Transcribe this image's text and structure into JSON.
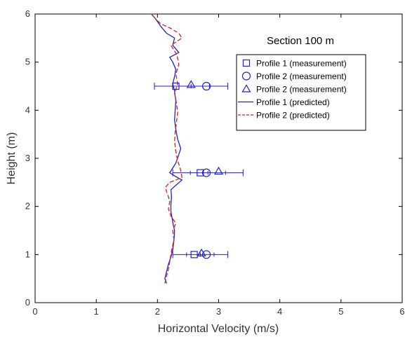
{
  "chart_data": {
    "type": "line",
    "title": "",
    "annotation": "Section 100 m",
    "xlabel": "Horizontal Velocity (m/s)",
    "ylabel": "Height (m)",
    "xlim": [
      0,
      6
    ],
    "ylim": [
      0,
      6
    ],
    "xticks": [
      0,
      1,
      2,
      3,
      4,
      5,
      6
    ],
    "yticks": [
      0,
      1,
      2,
      3,
      4,
      5,
      6
    ],
    "grid": false,
    "legend_position": "top-right",
    "colors": {
      "profile1": "#1f1fd6",
      "profile2": "#e41a1c",
      "axes": "#000000"
    },
    "series": [
      {
        "name": "Profile 1 (predicted)",
        "kind": "line",
        "style": "solid",
        "color": "#1f1fd6",
        "x": [
          2.15,
          2.12,
          2.15,
          2.18,
          2.22,
          2.25,
          2.27,
          2.28,
          2.26,
          2.24,
          2.22,
          2.22,
          2.23,
          2.22,
          2.4,
          2.3,
          2.2,
          2.3,
          2.38,
          2.33,
          2.3,
          2.28,
          2.29,
          2.3,
          2.28,
          2.25,
          2.28,
          2.3,
          2.25,
          2.2,
          2.35,
          2.25,
          2.28,
          2.15,
          2.05,
          1.97,
          1.9
        ],
        "y": [
          0.4,
          0.5,
          0.65,
          0.8,
          0.95,
          1.1,
          1.3,
          1.5,
          1.6,
          1.75,
          1.9,
          2.05,
          2.2,
          2.35,
          2.55,
          2.62,
          2.7,
          2.9,
          3.2,
          3.4,
          3.6,
          3.8,
          4.0,
          4.2,
          4.4,
          4.55,
          4.7,
          4.85,
          5.0,
          5.1,
          5.2,
          5.35,
          5.5,
          5.6,
          5.75,
          5.9,
          6.0
        ]
      },
      {
        "name": "Profile 2 (predicted)",
        "kind": "line",
        "style": "dashed",
        "color": "#e41a1c",
        "x": [
          2.12,
          2.15,
          2.18,
          2.2,
          2.22,
          2.24,
          2.27,
          2.25,
          2.3,
          2.22,
          2.18,
          2.2,
          2.18,
          2.15,
          2.13,
          2.2,
          2.4,
          2.38,
          2.33,
          2.3,
          2.28,
          2.29,
          2.31,
          2.33,
          2.31,
          2.28,
          2.33,
          2.3,
          2.35,
          2.32,
          2.22,
          2.4,
          2.35,
          2.22,
          2.05,
          1.97,
          1.9
        ],
        "y": [
          0.4,
          0.55,
          0.7,
          0.85,
          1.0,
          1.15,
          1.3,
          1.5,
          1.65,
          1.8,
          1.95,
          2.1,
          2.2,
          2.3,
          2.4,
          2.5,
          2.6,
          2.75,
          2.95,
          3.15,
          3.35,
          3.55,
          3.75,
          3.95,
          4.15,
          4.35,
          4.55,
          4.75,
          4.95,
          5.15,
          5.35,
          5.5,
          5.6,
          5.7,
          5.8,
          5.9,
          6.0
        ]
      },
      {
        "name": "Profile 1 (measurement)",
        "kind": "points",
        "marker": "square",
        "color": "#1f1fd6",
        "x": [
          2.6,
          2.7,
          2.3
        ],
        "y": [
          1.0,
          2.7,
          4.5
        ],
        "xerr_low": [
          2.25,
          2.25,
          1.95
        ],
        "xerr_high": [
          3.15,
          3.4,
          3.15
        ]
      },
      {
        "name": "Profile 2 (measurement)",
        "kind": "points",
        "marker": "circle",
        "color": "#1f1fd6",
        "x": [
          2.8,
          2.8,
          2.8
        ],
        "y": [
          1.0,
          2.7,
          4.5
        ]
      },
      {
        "name": "Profile 2 (measurement)",
        "kind": "points",
        "marker": "triangle",
        "color": "#1f1fd6",
        "x": [
          2.72,
          3.0,
          2.55
        ],
        "y": [
          1.03,
          2.73,
          4.53
        ]
      }
    ],
    "legend": [
      {
        "label": "Profile 1 (measurement)",
        "kind": "marker",
        "marker": "square",
        "color": "#1f1fd6"
      },
      {
        "label": "Profile 2 (measurement)",
        "kind": "marker",
        "marker": "circle",
        "color": "#1f1fd6"
      },
      {
        "label": "Profile 2 (measurement)",
        "kind": "marker",
        "marker": "triangle",
        "color": "#1f1fd6"
      },
      {
        "label": "Profile 1 (predicted)",
        "kind": "line",
        "style": "solid",
        "color": "#1f1fd6"
      },
      {
        "label": "Profile 2 (predicted)",
        "kind": "line",
        "style": "dashed",
        "color": "#e41a1c"
      }
    ]
  }
}
